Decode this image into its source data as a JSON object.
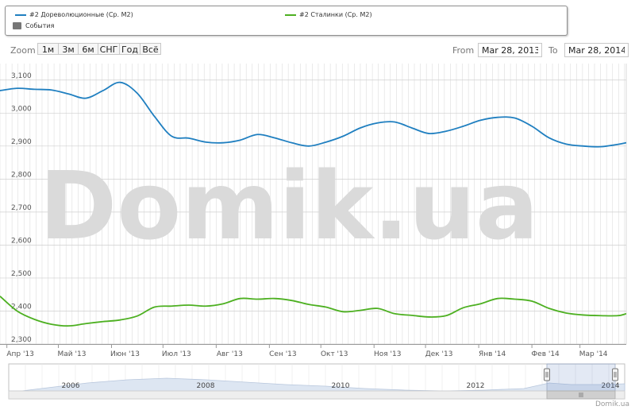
{
  "legend": {
    "series1_label": "#2 Дореволюционные (Ср. М2)",
    "series2_label": "#2 Сталинки (Ср. М2)",
    "events_label": "События"
  },
  "zoom": {
    "label": "Zoom",
    "buttons": [
      "1м",
      "3м",
      "6м",
      "СНГ",
      "Год",
      "Всё"
    ]
  },
  "range": {
    "from_label": "From",
    "from_value": "Mar 28, 2013",
    "to_label": "To",
    "to_value": "Mar 28, 2014"
  },
  "watermark": "Domik.ua",
  "credit": "Domik.ua",
  "colors": {
    "series1": "#1f7fc0",
    "series2": "#4db021",
    "grid": "#dddddd",
    "navigator_fill": "#dde6f2"
  },
  "navigator": {
    "years": [
      "2006",
      "2008",
      "2010",
      "2012",
      "2014"
    ],
    "selected_range": [
      "2013-03-28",
      "2014-03-28"
    ]
  },
  "chart_data": {
    "type": "line",
    "grid": true,
    "ylim": [
      2300,
      3150
    ],
    "yticks": [
      "2,300",
      "2,400",
      "2,500",
      "2,600",
      "2,700",
      "2,800",
      "2,900",
      "3,000",
      "3,100"
    ],
    "xlim": [
      "2013-03-28",
      "2014-03-28"
    ],
    "xticks": [
      "Апр '13",
      "Май '13",
      "Июн '13",
      "Июл '13",
      "Авг '13",
      "Сен '13",
      "Окт '13",
      "Ноя '13",
      "Дек '13",
      "Янв '14",
      "Фев '14",
      "Мар '14"
    ],
    "x": [
      "2013-03-28",
      "2013-04-07",
      "2013-04-17",
      "2013-04-27",
      "2013-05-07",
      "2013-05-17",
      "2013-05-27",
      "2013-06-06",
      "2013-06-16",
      "2013-06-26",
      "2013-07-06",
      "2013-07-16",
      "2013-07-26",
      "2013-08-05",
      "2013-08-15",
      "2013-08-25",
      "2013-09-04",
      "2013-09-14",
      "2013-09-24",
      "2013-10-04",
      "2013-10-14",
      "2013-10-24",
      "2013-11-03",
      "2013-11-13",
      "2013-11-23",
      "2013-12-03",
      "2013-12-13",
      "2013-12-23",
      "2014-01-02",
      "2014-01-12",
      "2014-01-22",
      "2014-02-01",
      "2014-02-11",
      "2014-02-21",
      "2014-03-03",
      "2014-03-13",
      "2014-03-23",
      "2014-03-28"
    ],
    "series": [
      {
        "name": "#2 Дореволюционные (Ср. М2)",
        "values": [
          3068,
          3075,
          3072,
          3070,
          3058,
          3045,
          3068,
          3093,
          3060,
          2990,
          2930,
          2924,
          2912,
          2910,
          2918,
          2935,
          2925,
          2910,
          2900,
          2912,
          2930,
          2955,
          2970,
          2973,
          2955,
          2938,
          2945,
          2960,
          2978,
          2987,
          2985,
          2960,
          2925,
          2906,
          2900,
          2898,
          2905,
          2910
        ]
      },
      {
        "name": "#2 Сталинки (Ср. М2)",
        "values": [
          2445,
          2400,
          2375,
          2360,
          2355,
          2362,
          2368,
          2373,
          2385,
          2412,
          2415,
          2418,
          2415,
          2422,
          2438,
          2436,
          2438,
          2432,
          2420,
          2412,
          2398,
          2402,
          2408,
          2392,
          2387,
          2382,
          2386,
          2410,
          2422,
          2438,
          2436,
          2430,
          2408,
          2394,
          2388,
          2386,
          2386,
          2392
        ]
      }
    ]
  }
}
